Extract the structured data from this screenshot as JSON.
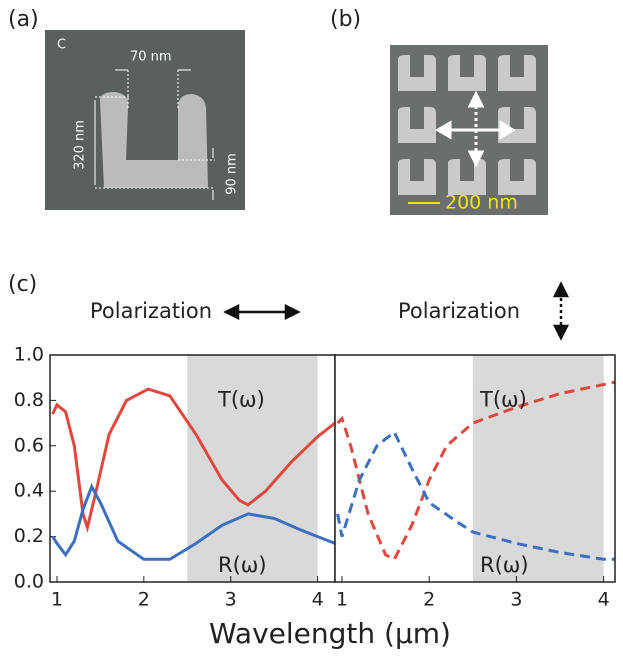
{
  "figure": {
    "panel_labels": [
      "(a)",
      "(b)",
      "(c)"
    ],
    "sem_a": {
      "corner": "C",
      "gap": "70 nm",
      "height": "320 nm",
      "bottom": "90 nm"
    },
    "sem_b": {
      "scale": "200 nm"
    },
    "xlabel": "Wavelength (µm)"
  },
  "chart_data": [
    {
      "type": "line",
      "title": "Polarization",
      "xlim": [
        0.92,
        4.2
      ],
      "xticks": [
        1,
        2,
        3,
        4
      ],
      "ylim": [
        0,
        1
      ],
      "yticks": [
        {
          "value": 0,
          "label": "0.0"
        },
        0.2,
        0.4,
        0.6,
        0.8,
        {
          "value": 1,
          "label": "1.0"
        }
      ],
      "shade": [
        2.5,
        4.0
      ],
      "dashed": false,
      "annotations": [
        "T(ω)",
        "R(ω)"
      ],
      "series": [
        {
          "name": "T(ω)",
          "color": "#e0483f",
          "x": [
            0.95,
            1.0,
            1.1,
            1.2,
            1.3,
            1.35,
            1.45,
            1.6,
            1.8,
            2.05,
            2.3,
            2.6,
            2.9,
            3.1,
            3.2,
            3.4,
            3.7,
            4.0,
            4.2
          ],
          "values": [
            0.74,
            0.78,
            0.75,
            0.6,
            0.3,
            0.24,
            0.4,
            0.65,
            0.8,
            0.85,
            0.82,
            0.65,
            0.45,
            0.36,
            0.34,
            0.4,
            0.53,
            0.64,
            0.7
          ]
        },
        {
          "name": "R(ω)",
          "color": "#3b6fc0",
          "x": [
            0.95,
            1.0,
            1.1,
            1.2,
            1.3,
            1.4,
            1.5,
            1.7,
            2.0,
            2.3,
            2.6,
            2.9,
            3.2,
            3.5,
            3.8,
            4.0,
            4.2
          ],
          "values": [
            0.2,
            0.17,
            0.12,
            0.18,
            0.32,
            0.42,
            0.35,
            0.18,
            0.1,
            0.1,
            0.17,
            0.25,
            0.3,
            0.28,
            0.23,
            0.2,
            0.17
          ]
        }
      ]
    },
    {
      "type": "line",
      "title": "Polarization",
      "xlim": [
        0.92,
        4.13
      ],
      "xticks": [
        1,
        2,
        3,
        4
      ],
      "ylim": [
        0,
        1
      ],
      "shade": [
        2.5,
        4.0
      ],
      "dashed": true,
      "annotations": [
        "T(ω)",
        "R(ω)"
      ],
      "series": [
        {
          "name": "T(ω)",
          "color": "#e0483f",
          "x": [
            0.95,
            1.0,
            1.1,
            1.3,
            1.5,
            1.6,
            1.8,
            2.0,
            2.2,
            2.5,
            3.0,
            3.5,
            4.0,
            4.13
          ],
          "values": [
            0.7,
            0.72,
            0.6,
            0.3,
            0.12,
            0.1,
            0.25,
            0.45,
            0.6,
            0.7,
            0.77,
            0.83,
            0.87,
            0.88
          ]
        },
        {
          "name": "R(ω)",
          "color": "#3b6fc0",
          "x": [
            0.95,
            1.0,
            1.2,
            1.4,
            1.6,
            1.8,
            2.0,
            2.3,
            2.5,
            3.0,
            3.5,
            4.0,
            4.13
          ],
          "values": [
            0.3,
            0.2,
            0.45,
            0.6,
            0.66,
            0.5,
            0.35,
            0.27,
            0.22,
            0.17,
            0.13,
            0.1,
            0.1
          ]
        }
      ]
    }
  ]
}
